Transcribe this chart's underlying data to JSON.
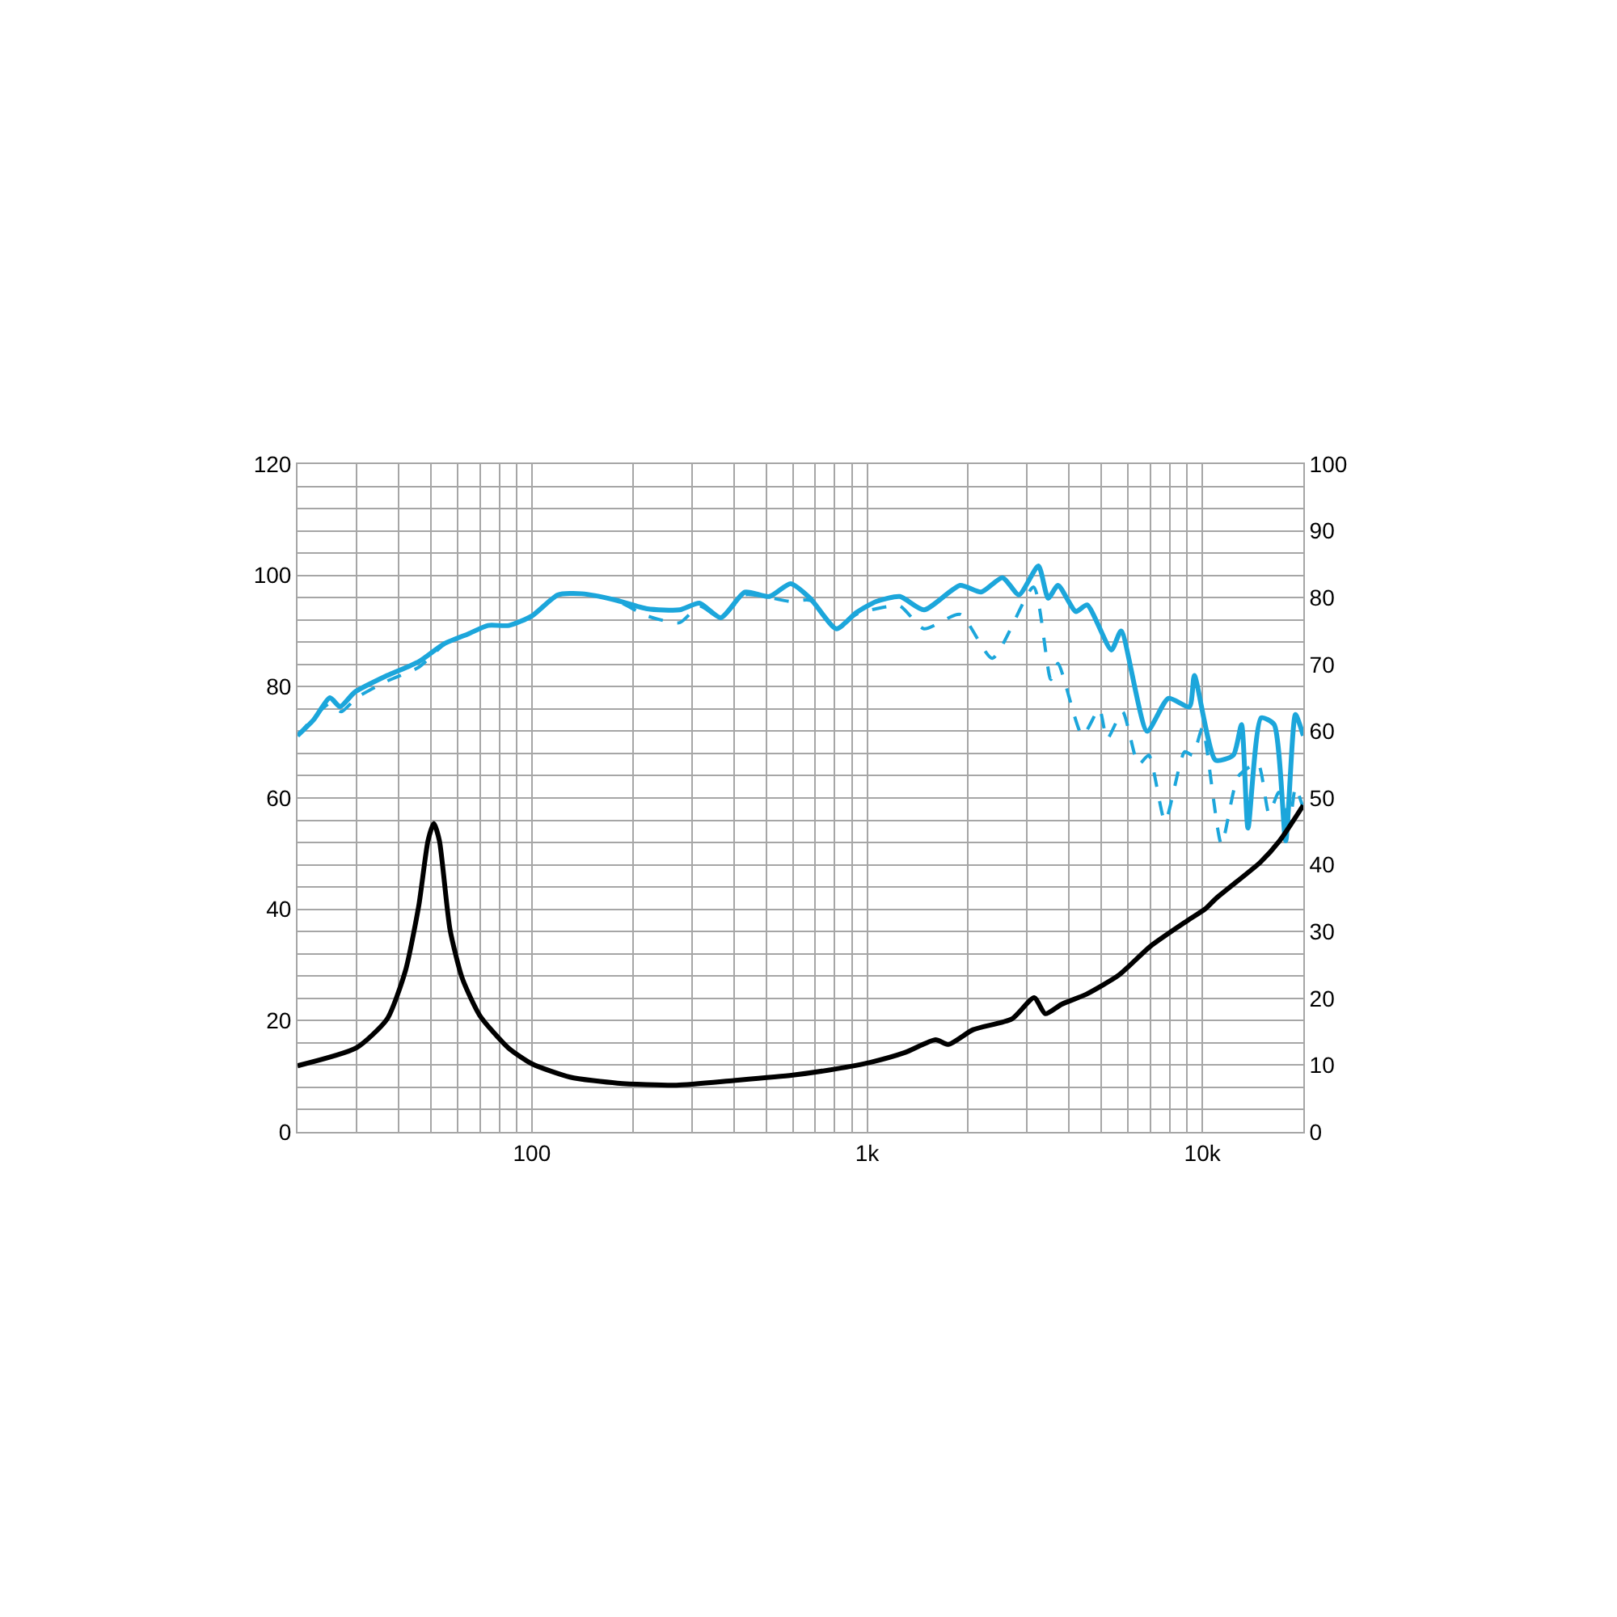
{
  "chart_data": {
    "type": "line",
    "log": "x",
    "grid": true,
    "marker": "none",
    "xlim": [
      20,
      20000
    ],
    "xticks": [
      100,
      {
        "value": 1000,
        "label": "1k"
      },
      {
        "value": 10000,
        "label": "10k"
      }
    ],
    "ylim": [
      0,
      120
    ],
    "yticks": [
      0,
      20,
      40,
      60,
      80,
      100,
      120
    ],
    "y2lim": [
      0,
      100
    ],
    "y2ticks": [
      0,
      10,
      20,
      30,
      40,
      50,
      60,
      70,
      80,
      90,
      100
    ],
    "series": [
      {
        "color": "#1ca6db",
        "line_style": "dashed",
        "x": [
          20,
          25,
          27,
          30,
          37,
          46,
          55,
          65,
          74,
          86,
          100,
          120,
          141,
          177,
          221,
          276,
          316,
          366,
          432,
          511,
          591,
          676,
          810,
          928,
          1064,
          1252,
          1478,
          1894,
          2364,
          3137,
          3530,
          3710,
          4390,
          4925,
          5200,
          5780,
          6450,
          6920,
          7740,
          8850,
          9370,
          10000,
          11400,
          12800,
          14640,
          15800,
          16900,
          18200,
          18950,
          20000
        ],
        "values": [
          71.2,
          77,
          75.5,
          78,
          81,
          83.5,
          87.7,
          89.5,
          91,
          91,
          92.7,
          96.5,
          96.7,
          95.6,
          92.7,
          91.5,
          94.5,
          92.4,
          96.5,
          96,
          95.3,
          95.5,
          90.4,
          93,
          94,
          94.5,
          90.4,
          93,
          85.1,
          97.9,
          81.3,
          84.2,
          71.2,
          76,
          70.6,
          75.5,
          66,
          67.7,
          55.8,
          68.3,
          67.7,
          72.6,
          51.7,
          63.9,
          66.2,
          57.2,
          61,
          55.8,
          61.9,
          58.1
        ]
      },
      {
        "color": "#1ca6db",
        "line_style": "solid",
        "x": [
          20,
          22.3,
          25,
          26.8,
          29.6,
          37,
          46,
          54.7,
          64.7,
          74,
          85.5,
          100,
          119.6,
          141,
          177,
          221,
          276,
          316,
          366,
          432,
          511,
          591,
          676,
          810,
          928,
          1064,
          1252,
          1478,
          1894,
          2187,
          2535,
          2837,
          3243,
          3468,
          3710,
          4193,
          4531,
          5352,
          5723,
          6842,
          7913,
          9150,
          9465,
          10940,
          12370,
          13082,
          13680,
          14970,
          16370,
          17720,
          18950,
          20000
        ],
        "values": [
          71.2,
          74,
          78,
          76.4,
          79,
          82,
          84.5,
          87.7,
          89.5,
          91,
          91,
          92.7,
          96.5,
          96.7,
          95.6,
          94,
          93.8,
          95,
          92.4,
          97,
          96.2,
          98.5,
          95.9,
          90.4,
          93.3,
          95.3,
          96.2,
          93.8,
          98.2,
          97,
          99.6,
          96.5,
          101.7,
          95.9,
          98.2,
          93.5,
          94.7,
          86.6,
          90,
          72,
          77.9,
          76.4,
          82,
          66.8,
          67.7,
          73.2,
          54.6,
          74.4,
          73.2,
          52.3,
          75,
          71.2
        ]
      },
      {
        "color": "#000000",
        "line_style": "solid",
        "axis": "y2",
        "x": [
          20,
          30,
          37,
          42,
          46,
          49,
          51,
          53,
          57,
          62,
          70,
          85,
          100,
          130,
          180,
          270,
          400,
          600,
          800,
          1020,
          1300,
          1600,
          1750,
          2070,
          2700,
          3150,
          3400,
          3800,
          4500,
          5640,
          7000,
          9000,
          10200,
          11000,
          14900,
          17000,
          20000
        ],
        "values": [
          9.9,
          12.6,
          16.9,
          24.2,
          33.9,
          43.6,
          46.2,
          43.6,
          30.3,
          23,
          17.4,
          12.6,
          10.2,
          8.2,
          7.3,
          7,
          7.7,
          8.5,
          9.4,
          10.4,
          11.9,
          13.8,
          13.1,
          15.3,
          16.9,
          20.1,
          17.7,
          19.1,
          20.6,
          23.5,
          27.8,
          31.6,
          33.4,
          35,
          40.4,
          43.6,
          48.9
        ]
      }
    ]
  }
}
